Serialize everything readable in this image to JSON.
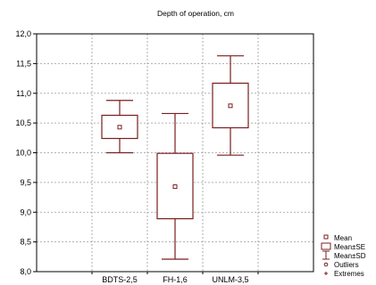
{
  "chart_data": {
    "type": "box",
    "title": "Depth of operation, cm",
    "xlabel": "",
    "ylabel": "",
    "ylim": [
      8.0,
      12.0
    ],
    "yticks": [
      8.0,
      8.5,
      9.0,
      9.5,
      10.0,
      10.5,
      11.0,
      11.5,
      12.0
    ],
    "ytick_labels": [
      "8,0",
      "8,5",
      "9,0",
      "9,5",
      "10,0",
      "10,5",
      "11,0",
      "11,5",
      "12,0"
    ],
    "categories": [
      "BDTS-2,5",
      "FH-1,6",
      "UNLM-3,5"
    ],
    "mean": [
      10.43,
      9.43,
      10.79
    ],
    "se_low": [
      10.24,
      8.89,
      10.42
    ],
    "se_high": [
      10.63,
      9.99,
      11.17
    ],
    "sd_low": [
      10.0,
      8.21,
      9.96
    ],
    "sd_high": [
      10.88,
      10.66,
      11.63
    ],
    "grid": true,
    "color": "#7a1f1f",
    "legend_position": "bottom-right",
    "legend": [
      "Mean",
      "Mean±SE",
      "Mean±SD",
      "Outliers",
      "Extremes"
    ]
  }
}
